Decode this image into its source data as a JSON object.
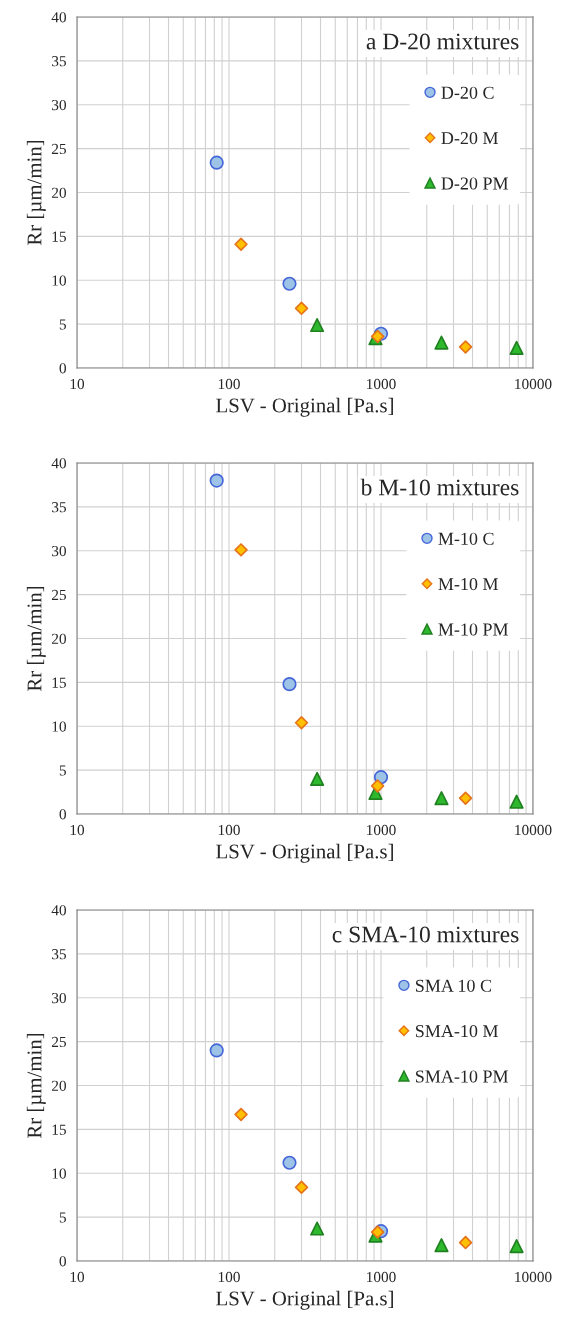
{
  "chart_data": [
    {
      "type": "scatter",
      "title": "a D-20 mixtures",
      "xlabel": "LSV - Original [Pa.s]",
      "ylabel": "Rr [µm/min]",
      "log": "x",
      "xlim": [
        10,
        10000
      ],
      "xticks": [
        10,
        100,
        1000,
        10000
      ],
      "ylim": [
        0,
        40
      ],
      "yticks": [
        0,
        5,
        10,
        15,
        20,
        25,
        30,
        35,
        40
      ],
      "grid": true,
      "legend": "top right",
      "series": [
        {
          "name": "D-20 C",
          "color": "#9dc3e6",
          "marker": "circle",
          "x": [
            83,
            250,
            1000
          ],
          "values": [
            23.4,
            9.6,
            3.9
          ]
        },
        {
          "name": "D-20 M",
          "color": "#ffc000",
          "marker": "diamond",
          "x": [
            120,
            300,
            950,
            3600
          ],
          "values": [
            14.1,
            6.8,
            3.6,
            2.4
          ]
        },
        {
          "name": "D-20 PM",
          "color": "#2eb82e",
          "marker": "triangle",
          "x": [
            380,
            920,
            2500,
            7800
          ],
          "values": [
            4.9,
            3.4,
            2.9,
            2.3
          ]
        }
      ]
    },
    {
      "type": "scatter",
      "title": "b M-10 mixtures",
      "xlabel": "LSV - Original [Pa.s]",
      "ylabel": "Rr [µm/min]",
      "log": "x",
      "xlim": [
        10,
        10000
      ],
      "xticks": [
        10,
        100,
        1000,
        10000
      ],
      "ylim": [
        0,
        40
      ],
      "yticks": [
        0,
        5,
        10,
        15,
        20,
        25,
        30,
        35,
        40
      ],
      "grid": true,
      "legend": "top right",
      "series": [
        {
          "name": "M-10 C",
          "color": "#9dc3e6",
          "marker": "circle",
          "x": [
            83,
            250,
            1000
          ],
          "values": [
            38,
            14.8,
            4.2
          ]
        },
        {
          "name": "M-10 M",
          "color": "#ffc000",
          "marker": "diamond",
          "x": [
            120,
            300,
            950,
            3600
          ],
          "values": [
            30.1,
            10.4,
            3.2,
            1.8
          ]
        },
        {
          "name": "M-10 PM",
          "color": "#2eb82e",
          "marker": "triangle",
          "x": [
            380,
            920,
            2500,
            7800
          ],
          "values": [
            4.0,
            2.4,
            1.8,
            1.4
          ]
        }
      ]
    },
    {
      "type": "scatter",
      "title": "c SMA-10 mixtures",
      "xlabel": "LSV - Original [Pa.s]",
      "ylabel": "Rr [µm/min]",
      "log": "x",
      "xlim": [
        10,
        10000
      ],
      "xticks": [
        10,
        100,
        1000,
        10000
      ],
      "ylim": [
        0,
        40
      ],
      "yticks": [
        0,
        5,
        10,
        15,
        20,
        25,
        30,
        35,
        40
      ],
      "grid": true,
      "legend": "top right",
      "series": [
        {
          "name": "SMA 10 C",
          "color": "#9dc3e6",
          "marker": "circle",
          "x": [
            83,
            250,
            1000
          ],
          "values": [
            24,
            11.2,
            3.4
          ]
        },
        {
          "name": "SMA-10 M",
          "color": "#ffc000",
          "marker": "diamond",
          "x": [
            120,
            300,
            950,
            3600
          ],
          "values": [
            16.7,
            8.4,
            3.3,
            2.1
          ]
        },
        {
          "name": "SMA-10 PM",
          "color": "#2eb82e",
          "marker": "triangle",
          "x": [
            380,
            920,
            2500,
            7800
          ],
          "values": [
            3.7,
            2.9,
            1.8,
            1.7
          ]
        }
      ]
    }
  ]
}
